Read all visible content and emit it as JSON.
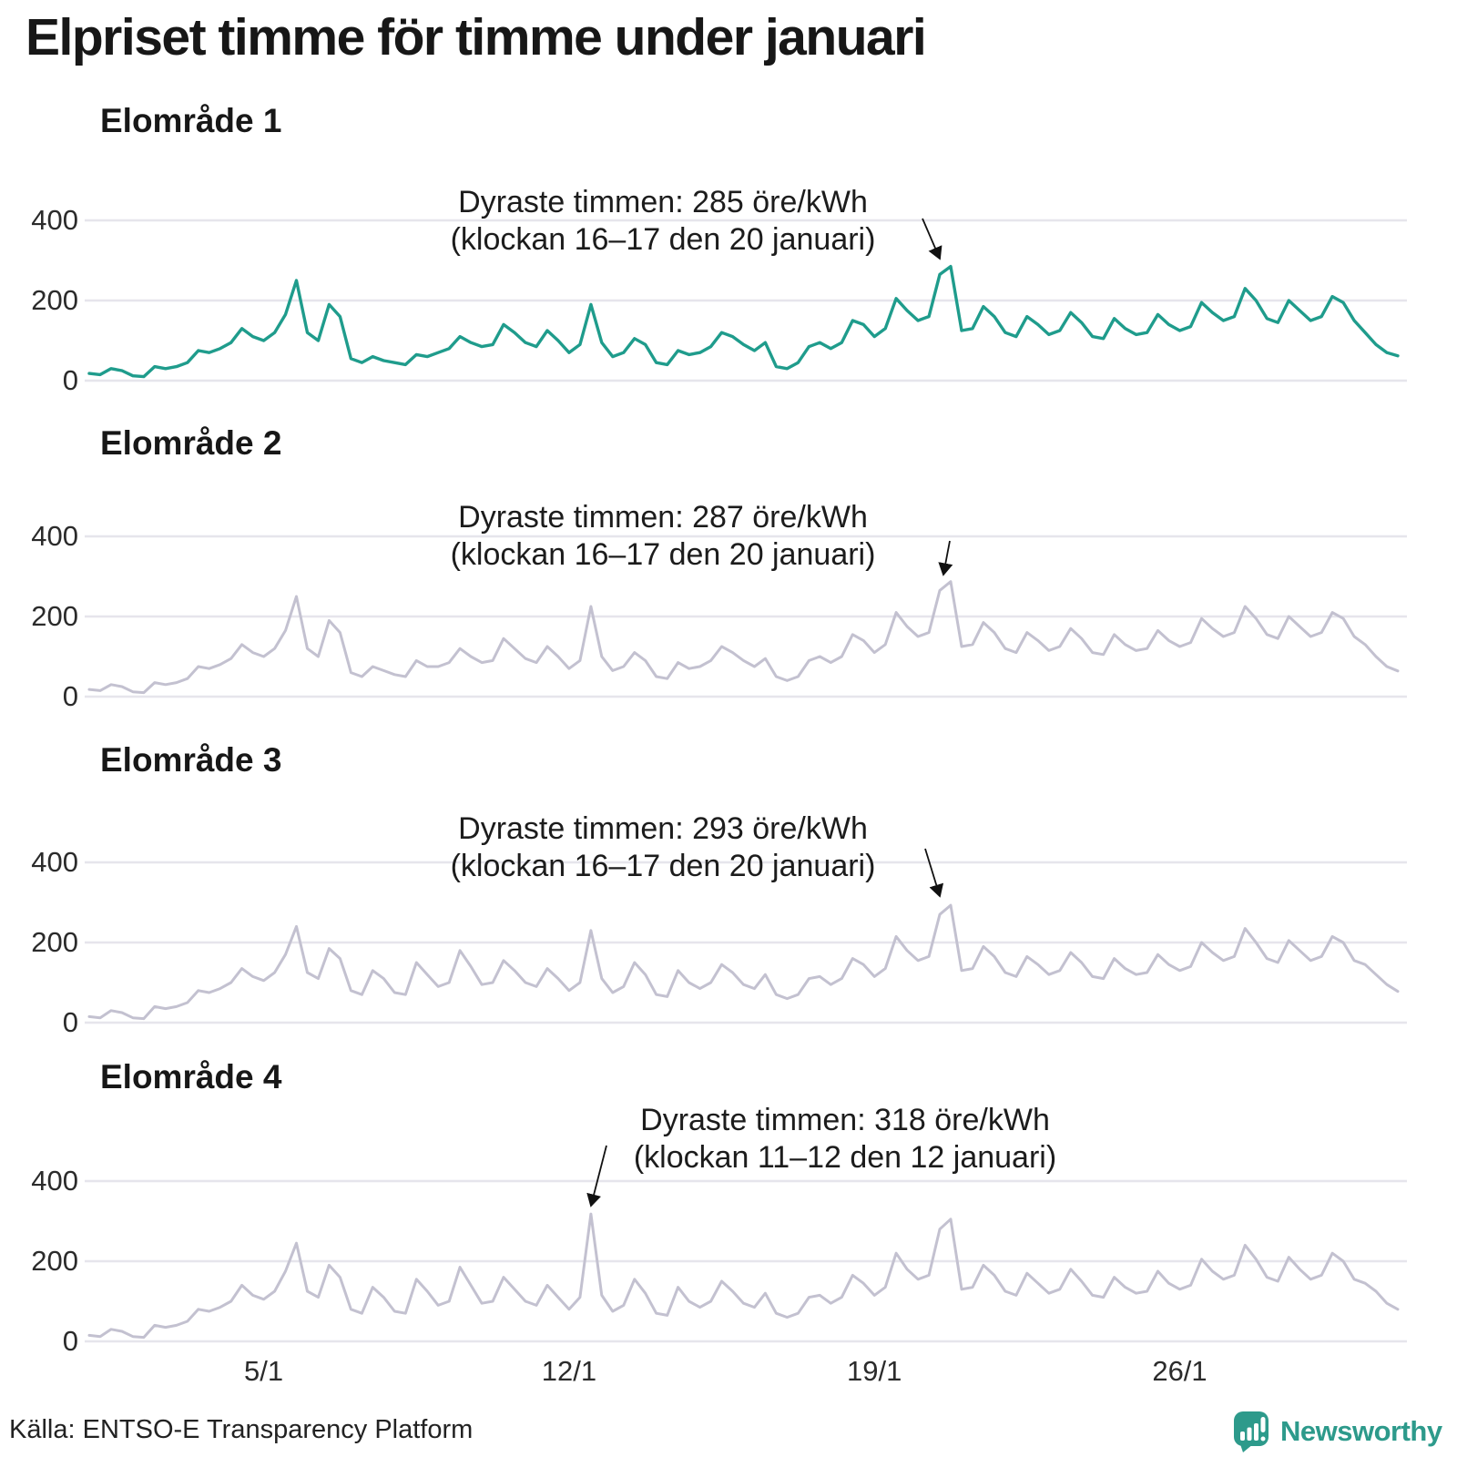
{
  "header": {
    "title": "Elpriset timme för timme under januari"
  },
  "footer": {
    "source": "Källa: ENTSO-E Transparency Platform",
    "brand": "Newsworthy"
  },
  "colors": {
    "accent_teal": "#1f9c8c",
    "series_gray": "#c3c1d0",
    "grid": "#e6e5ec",
    "text": "#1c1c1c",
    "brand_teal": "#2d9a8b"
  },
  "chart_data": {
    "type": "line",
    "unit": "öre/kWh",
    "title": "Elpriset timme för timme under januari",
    "y_ticks": [
      0,
      200,
      400
    ],
    "ylim": [
      0,
      450
    ],
    "x_ticks": [
      {
        "label": "5/1",
        "day": 5
      },
      {
        "label": "12/1",
        "day": 12
      },
      {
        "label": "19/1",
        "day": 19
      },
      {
        "label": "26/1",
        "day": 26
      }
    ],
    "x_range_days": [
      1,
      31
    ],
    "sample_interval_hours": 6,
    "grid": true,
    "panels": [
      {
        "title": "Elområde 1",
        "line_color": "#1f9c8c",
        "annotation_line1": "Dyraste timmen: 285 öre/kWh",
        "annotation_line2": "(klockan 16–17 den 20 januari)",
        "max": {
          "value": 285,
          "hours": "16–17",
          "date": "20 januari"
        },
        "values": [
          18,
          15,
          30,
          25,
          12,
          10,
          35,
          30,
          35,
          45,
          75,
          70,
          80,
          95,
          130,
          110,
          100,
          120,
          165,
          250,
          120,
          100,
          190,
          160,
          55,
          45,
          60,
          50,
          45,
          40,
          65,
          60,
          70,
          80,
          110,
          95,
          85,
          90,
          140,
          120,
          95,
          85,
          125,
          100,
          70,
          90,
          190,
          95,
          60,
          70,
          105,
          90,
          45,
          40,
          75,
          65,
          70,
          85,
          120,
          110,
          90,
          75,
          95,
          35,
          30,
          45,
          85,
          95,
          80,
          95,
          150,
          140,
          110,
          130,
          205,
          175,
          150,
          160,
          265,
          285,
          125,
          130,
          185,
          160,
          120,
          110,
          160,
          140,
          115,
          125,
          170,
          145,
          110,
          105,
          155,
          130,
          115,
          120,
          165,
          140,
          125,
          135,
          195,
          170,
          150,
          160,
          230,
          200,
          155,
          145,
          200,
          175,
          150,
          160,
          210,
          195,
          150,
          120,
          90,
          70,
          62
        ]
      },
      {
        "title": "Elområde 2",
        "line_color": "#c3c1d0",
        "annotation_line1": "Dyraste timmen: 287 öre/kWh",
        "annotation_line2": "(klockan 16–17 den 20 januari)",
        "max": {
          "value": 287,
          "hours": "16–17",
          "date": "20 januari"
        },
        "values": [
          18,
          15,
          30,
          25,
          12,
          10,
          35,
          30,
          35,
          45,
          75,
          70,
          80,
          95,
          130,
          110,
          100,
          120,
          165,
          250,
          120,
          100,
          190,
          160,
          60,
          50,
          75,
          65,
          55,
          50,
          90,
          75,
          75,
          85,
          120,
          100,
          85,
          90,
          145,
          120,
          95,
          85,
          125,
          100,
          70,
          90,
          225,
          100,
          65,
          75,
          110,
          90,
          50,
          45,
          85,
          70,
          75,
          90,
          125,
          110,
          90,
          75,
          95,
          50,
          40,
          50,
          90,
          100,
          85,
          100,
          155,
          140,
          110,
          130,
          210,
          175,
          150,
          160,
          265,
          287,
          125,
          130,
          185,
          160,
          120,
          110,
          160,
          140,
          115,
          125,
          170,
          145,
          110,
          105,
          155,
          130,
          115,
          120,
          165,
          140,
          125,
          135,
          195,
          170,
          150,
          160,
          225,
          195,
          155,
          145,
          200,
          175,
          150,
          160,
          210,
          195,
          150,
          130,
          100,
          75,
          64
        ]
      },
      {
        "title": "Elområde 3",
        "line_color": "#c3c1d0",
        "annotation_line1": "Dyraste timmen: 293 öre/kWh",
        "annotation_line2": "(klockan 16–17 den 20 januari)",
        "max": {
          "value": 293,
          "hours": "16–17",
          "date": "20 januari"
        },
        "values": [
          15,
          12,
          30,
          25,
          12,
          10,
          40,
          35,
          40,
          50,
          80,
          75,
          85,
          100,
          135,
          115,
          105,
          125,
          170,
          240,
          125,
          110,
          185,
          160,
          80,
          70,
          130,
          110,
          75,
          70,
          150,
          120,
          90,
          100,
          180,
          140,
          95,
          100,
          155,
          130,
          100,
          90,
          135,
          110,
          80,
          100,
          230,
          110,
          75,
          90,
          150,
          120,
          70,
          65,
          130,
          100,
          85,
          100,
          145,
          125,
          95,
          85,
          120,
          70,
          60,
          70,
          110,
          115,
          95,
          110,
          160,
          145,
          115,
          135,
          215,
          180,
          155,
          165,
          270,
          293,
          130,
          135,
          190,
          165,
          125,
          115,
          165,
          145,
          120,
          130,
          175,
          150,
          115,
          110,
          160,
          135,
          120,
          125,
          170,
          145,
          130,
          140,
          200,
          175,
          155,
          165,
          235,
          200,
          160,
          150,
          205,
          180,
          155,
          165,
          215,
          200,
          155,
          145,
          120,
          95,
          78
        ]
      },
      {
        "title": "Elområde 4",
        "line_color": "#c3c1d0",
        "annotation_line1": "Dyraste timmen: 318 öre/kWh",
        "annotation_line2": "(klockan 11–12 den 12 januari)",
        "max": {
          "value": 318,
          "hours": "11–12",
          "date": "12 januari"
        },
        "values": [
          15,
          12,
          30,
          25,
          12,
          10,
          40,
          35,
          40,
          50,
          80,
          75,
          85,
          100,
          140,
          115,
          105,
          125,
          175,
          245,
          125,
          110,
          190,
          160,
          80,
          70,
          135,
          110,
          75,
          70,
          155,
          125,
          90,
          100,
          185,
          140,
          95,
          100,
          160,
          130,
          100,
          90,
          140,
          110,
          80,
          110,
          318,
          115,
          75,
          90,
          155,
          120,
          70,
          65,
          135,
          100,
          85,
          100,
          150,
          125,
          95,
          85,
          120,
          70,
          60,
          70,
          110,
          115,
          95,
          110,
          165,
          145,
          115,
          135,
          220,
          180,
          155,
          165,
          280,
          305,
          130,
          135,
          190,
          165,
          125,
          115,
          170,
          145,
          120,
          130,
          180,
          150,
          115,
          110,
          160,
          135,
          120,
          125,
          175,
          145,
          130,
          140,
          205,
          175,
          155,
          165,
          240,
          205,
          160,
          150,
          210,
          180,
          155,
          165,
          220,
          200,
          155,
          145,
          125,
          95,
          80
        ]
      }
    ]
  }
}
